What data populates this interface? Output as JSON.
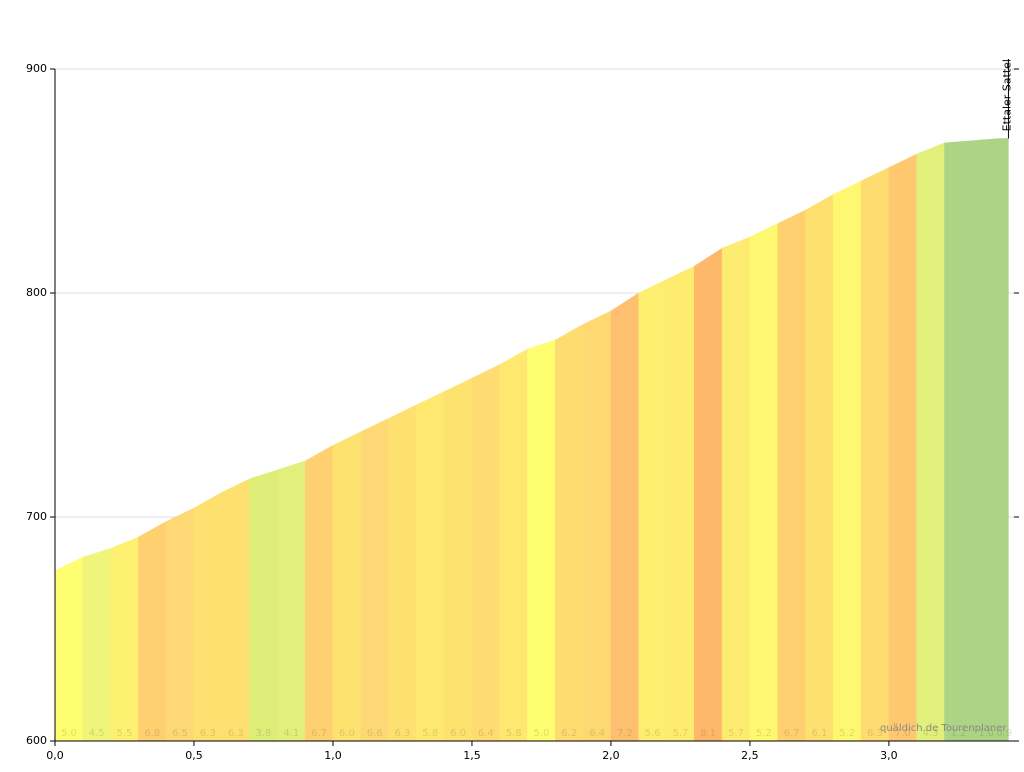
{
  "chart_data": {
    "type": "elevation-profile",
    "annotation": "Ettaler Sattel",
    "watermark": "quäldich.de Tourenplaner",
    "x": [
      0,
      0.1,
      0.2,
      0.3,
      0.4,
      0.5,
      0.6,
      0.7,
      0.8,
      0.9,
      1.0,
      1.1,
      1.2,
      1.3,
      1.4,
      1.5,
      1.6,
      1.7,
      1.8,
      1.9,
      2.0,
      2.1,
      2.2,
      2.3,
      2.4,
      2.5,
      2.6,
      2.7,
      2.8,
      2.9,
      3.0,
      3.1,
      3.2,
      3.3,
      3.4,
      3.43
    ],
    "values": [
      676,
      682,
      686,
      691,
      698,
      704,
      711,
      717,
      721,
      725,
      732,
      738,
      744,
      750,
      756,
      762,
      768,
      775,
      779,
      786,
      792,
      800,
      806,
      812,
      820,
      825,
      831,
      837,
      844,
      850,
      856,
      862,
      867,
      868,
      869,
      869
    ],
    "gradients": [
      "5.0",
      "4.5",
      "5.5",
      "6.8",
      "6.5",
      "6.3",
      "6.3",
      "3.8",
      "4.1",
      "6.7",
      "6.0",
      "6.6",
      "6.3",
      "5.8",
      "6.0",
      "6.4",
      "5.8",
      "5.0",
      "6.2",
      "6.4",
      "7.2",
      "5.6",
      "5.7",
      "8.1",
      "5.7",
      "5.2",
      "6.7",
      "6.1",
      "5.2",
      "6.3",
      "7.0",
      "4.3",
      "1.2",
      "1.0",
      "0.9"
    ],
    "colors": [
      "#fefe70",
      "#eef57a",
      "#fef070",
      "#fed070",
      "#fed874",
      "#fee070",
      "#fee070",
      "#dded78",
      "#e2ef7a",
      "#fed070",
      "#fee270",
      "#fed874",
      "#fee070",
      "#fee870",
      "#fee270",
      "#fedc72",
      "#fee870",
      "#fefe70",
      "#fedc70",
      "#fed870",
      "#fec070",
      "#feee70",
      "#feec70",
      "#feb86a",
      "#feec70",
      "#fef870",
      "#fed070",
      "#fee070",
      "#fef870",
      "#fedc70",
      "#fec870",
      "#e2ef7a",
      "#acd484",
      "#acd484",
      "#acd484"
    ],
    "xlim": [
      0,
      3.45
    ],
    "ylim": [
      600,
      900
    ],
    "xticks": [
      {
        "value": 0,
        "label": "0,0"
      },
      {
        "value": 0.5,
        "label": "0,5"
      },
      {
        "value": 1.0,
        "label": "1,0"
      },
      {
        "value": 1.5,
        "label": "1,5"
      },
      {
        "value": 2.0,
        "label": "2,0"
      },
      {
        "value": 2.5,
        "label": "2,5"
      },
      {
        "value": 3.0,
        "label": "3,0"
      }
    ],
    "yticks": [
      600,
      700,
      800,
      900
    ],
    "grid": true
  }
}
